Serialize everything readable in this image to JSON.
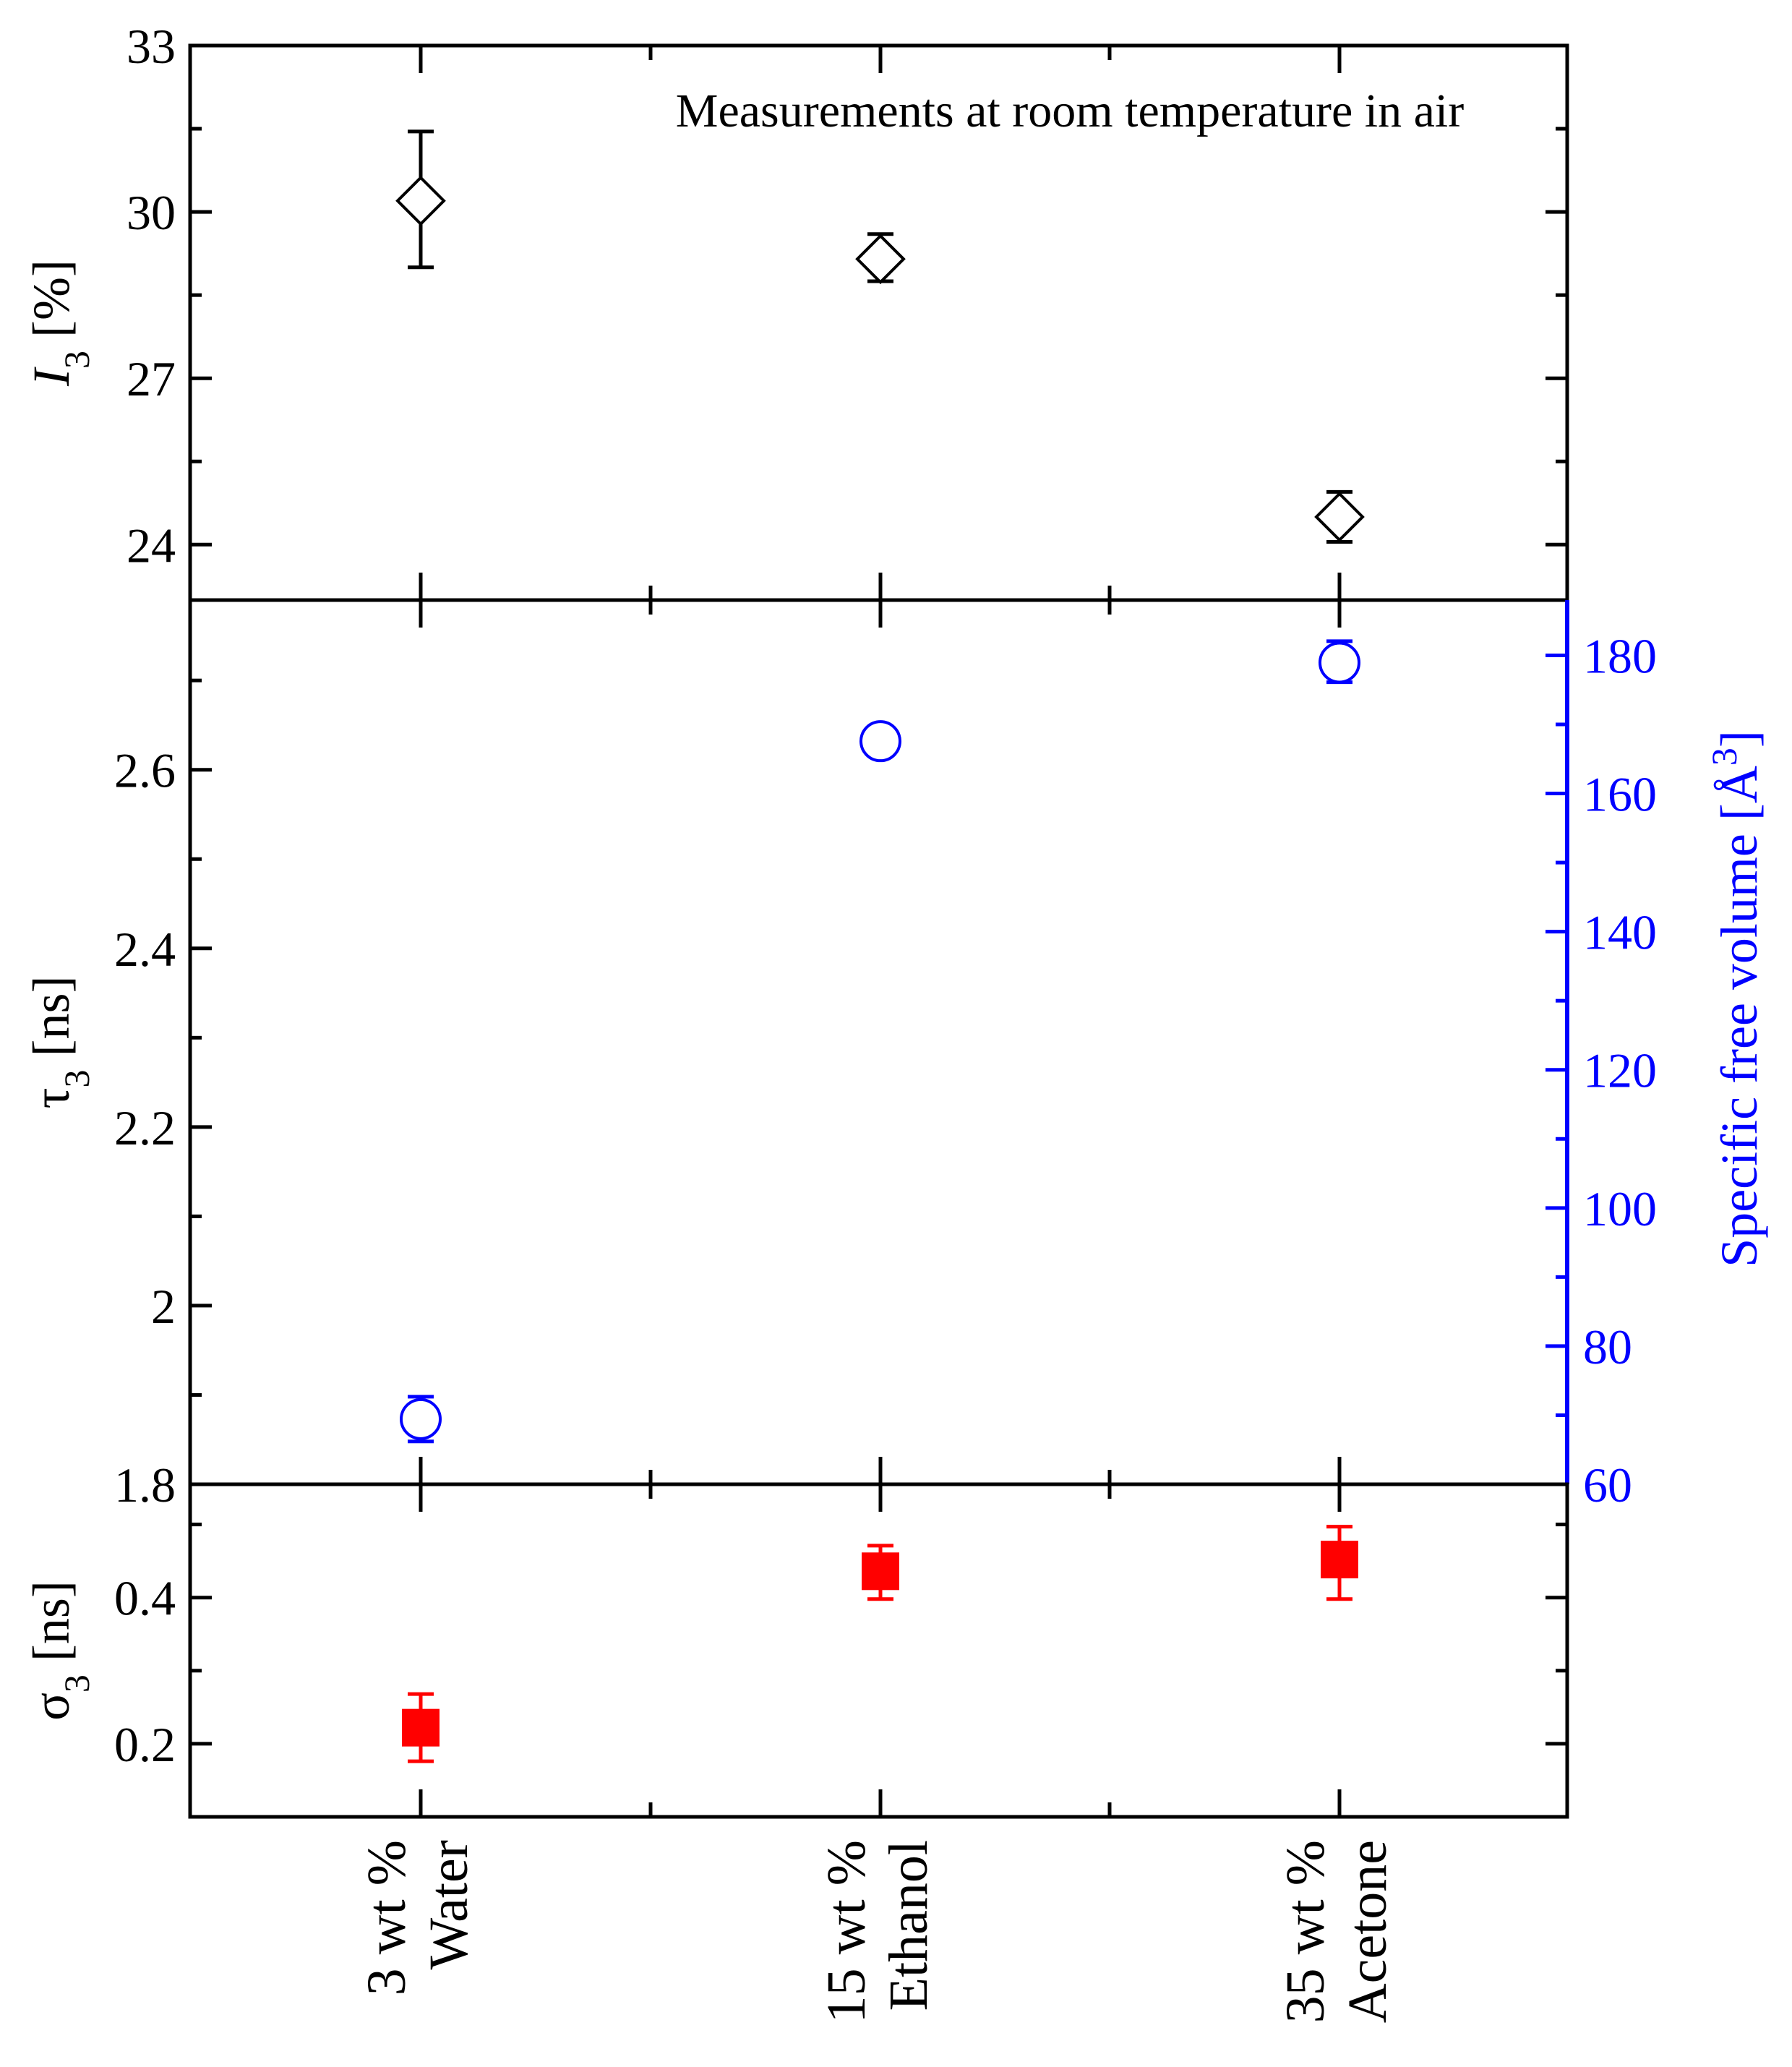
{
  "chart_data": {
    "type": "scatter",
    "annotation": "Measurements at room temperature in air",
    "categories": [
      {
        "line1": "3 wt %",
        "line2": "Water"
      },
      {
        "line1": "15 wt %",
        "line2": "Ethanol"
      },
      {
        "line1": "35 wt %",
        "line2": "Acetone"
      }
    ],
    "panels": [
      {
        "id": "I3",
        "ylabel_main": "I",
        "ylabel_sub": "3",
        "ylabel_unit": " [%]",
        "ylim": [
          23.0,
          33.0
        ],
        "yticks": [
          24,
          27,
          30,
          33
        ],
        "marker": "open-diamond",
        "color": "#000000",
        "points": [
          {
            "y": 30.2,
            "err_lo": 29.0,
            "err_hi": 31.45
          },
          {
            "y": 29.15,
            "err_lo": 28.75,
            "err_hi": 29.6
          },
          {
            "y": 24.5,
            "err_lo": 24.05,
            "err_hi": 24.95
          }
        ]
      },
      {
        "id": "tau3",
        "ylabel_main": "τ",
        "ylabel_sub": "3",
        "ylabel_unit": " [ns]",
        "ylim": [
          1.8,
          2.79
        ],
        "yticks": [
          1.8,
          2.0,
          2.2,
          2.4,
          2.6
        ],
        "right_axis": {
          "label_main": "Specific free volume [Å",
          "label_sup": "3",
          "label_end": "]",
          "ylim": [
            60.0,
            188.0
          ],
          "yticks": [
            60,
            80,
            100,
            120,
            140,
            160,
            180
          ],
          "color": "#0000ff"
        },
        "marker": "open-circle",
        "color": "#0000ff",
        "points": [
          {
            "y": 1.873,
            "err_lo": 1.848,
            "err_hi": 1.898
          },
          {
            "y": 2.632,
            "err_lo": 2.618,
            "err_hi": 2.646
          },
          {
            "y": 2.72,
            "err_lo": 2.698,
            "err_hi": 2.744
          }
        ]
      },
      {
        "id": "sigma3",
        "ylabel_main": "σ",
        "ylabel_sub": "3",
        "ylabel_unit": " [ns]",
        "ylim": [
          0.1,
          0.555
        ],
        "yticks": [
          0.2,
          0.4
        ],
        "marker": "filled-square",
        "color": "#ff0000",
        "points": [
          {
            "y": 0.222,
            "err_lo": 0.176,
            "err_hi": 0.268
          },
          {
            "y": 0.436,
            "err_lo": 0.398,
            "err_hi": 0.471
          },
          {
            "y": 0.452,
            "err_lo": 0.398,
            "err_hi": 0.497
          }
        ]
      }
    ]
  }
}
